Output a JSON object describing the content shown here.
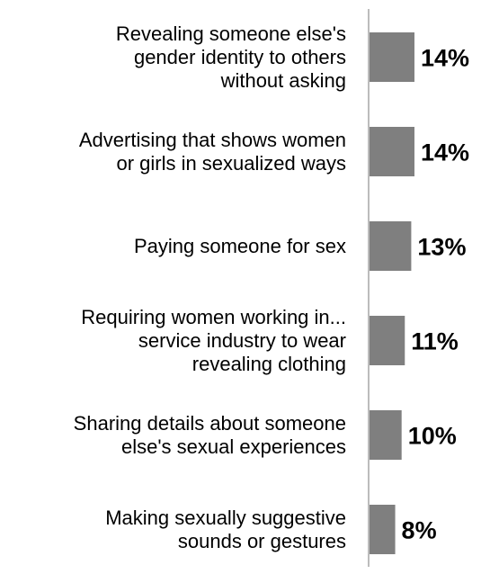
{
  "chart_data": {
    "type": "bar",
    "orientation": "horizontal",
    "categories": [
      [
        "Revealing someone else's",
        "gender identity to others",
        "without asking"
      ],
      [
        "Advertising that shows women",
        "or girls in sexualized ways"
      ],
      [
        "Paying someone for sex"
      ],
      [
        "Requiring women working in...",
        "service industry to wear",
        "revealing clothing"
      ],
      [
        "Sharing details about someone",
        "else's sexual experiences"
      ],
      [
        "Making sexually suggestive",
        "sounds or gestures"
      ]
    ],
    "values": [
      14,
      14,
      13,
      11,
      10,
      8
    ],
    "value_labels": [
      "14%",
      "14%",
      "13%",
      "11%",
      "10%",
      "8%"
    ],
    "unit": "%",
    "xlim": [
      0,
      20
    ],
    "grid": false,
    "legend": "none",
    "colors": {
      "bar": "#7f7f7f",
      "axis": "#a6a6a6",
      "text": "#000000"
    }
  }
}
